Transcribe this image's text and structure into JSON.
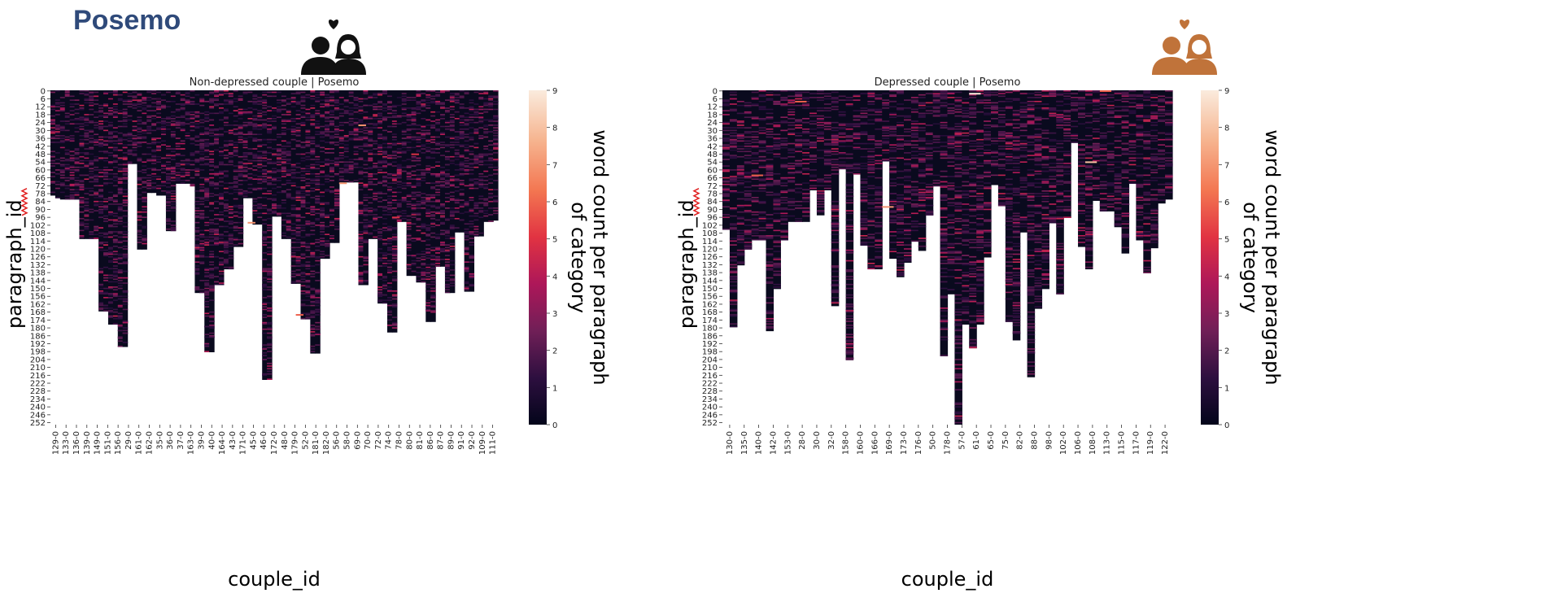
{
  "page": {
    "title": "Posemo"
  },
  "icons": [
    {
      "name": "couple-icon",
      "color": "#111111"
    },
    {
      "name": "couple-icon",
      "color": "#c0733a"
    }
  ],
  "chart_data": [
    {
      "type": "heatmap",
      "title": "Non-depressed couple | Posemo",
      "xlabel": "couple_id",
      "ylabel": "paragraph_id",
      "colorbar_label": "word count per paragraph of category",
      "colorbar_ticks": [
        0,
        1,
        2,
        3,
        4,
        5,
        6,
        7,
        8,
        9
      ],
      "vmin": 0,
      "vmax": 9,
      "colormap": [
        "#03051a",
        "#2d0f3f",
        "#701f57",
        "#ad1759",
        "#e13342",
        "#f37651",
        "#f6b48f",
        "#faebdd"
      ],
      "y_ticks": [
        "0",
        "6",
        "12",
        "18",
        "24",
        "30",
        "36",
        "42",
        "48",
        "54",
        "60",
        "66",
        "72",
        "78",
        "84",
        "90",
        "96",
        "102",
        "108",
        "114",
        "120",
        "126",
        "132",
        "138",
        "144",
        "150",
        "156",
        "162",
        "168",
        "174",
        "180",
        "186",
        "192",
        "198",
        "204",
        "210",
        "216",
        "222",
        "228",
        "234",
        "240",
        "246",
        "252"
      ],
      "x_ticks": [
        "129-0",
        "133-0",
        "136-0",
        "139-0",
        "149-0",
        "151-0",
        "156-0",
        "29-0",
        "161-0",
        "162-0",
        "35-0",
        "36-0",
        "37-0",
        "163-0",
        "39-0",
        "40-0",
        "164-0",
        "43-0",
        "171-0",
        "45-0",
        "46-0",
        "172-0",
        "48-0",
        "179-0",
        "52-0",
        "181-0",
        "182-0",
        "56-0",
        "58-0",
        "69-0",
        "70-0",
        "72-0",
        "74-0",
        "78-0",
        "80-0",
        "81-0",
        "86-0",
        "87-0",
        "89-0",
        "91-0",
        "92-0",
        "109-0",
        "111-0"
      ],
      "column_lengths": [
        80,
        82,
        83,
        83,
        83,
        83,
        113,
        113,
        113,
        113,
        168,
        168,
        178,
        178,
        195,
        195,
        56,
        56,
        121,
        121,
        78,
        78,
        80,
        80,
        107,
        107,
        71,
        71,
        71,
        73,
        154,
        154,
        199,
        199,
        148,
        148,
        136,
        136,
        119,
        119,
        82,
        82,
        102,
        102,
        220,
        220,
        96,
        96,
        113,
        113,
        147,
        147,
        174,
        174,
        200,
        200,
        128,
        128,
        116,
        116,
        70,
        70,
        70,
        70,
        148,
        148,
        113,
        113,
        162,
        162,
        184,
        184,
        100,
        100,
        141,
        141,
        146,
        146,
        176,
        176,
        134,
        134,
        154,
        154,
        108,
        108,
        153,
        153,
        111,
        111,
        100,
        100,
        99
      ],
      "highlights": [
        {
          "x": "45-0",
          "y": 100,
          "value": 7
        },
        {
          "x": "70-0",
          "y": 26,
          "value": 7
        },
        {
          "x": "52-0",
          "y": 170,
          "value": 6
        },
        {
          "x": "58-0",
          "y": 70,
          "value": 7
        },
        {
          "x": "81-0",
          "y": 48,
          "value": 5
        },
        {
          "x": "78-0",
          "y": 96,
          "value": 5
        }
      ]
    },
    {
      "type": "heatmap",
      "title": "Depressed couple | Posemo",
      "xlabel": "couple_id",
      "ylabel": "paragraph_id",
      "colorbar_label": "word count per paragraph of category",
      "colorbar_ticks": [
        0,
        1,
        2,
        3,
        4,
        5,
        6,
        7,
        8,
        9
      ],
      "vmin": 0,
      "vmax": 9,
      "colormap": [
        "#03051a",
        "#2d0f3f",
        "#701f57",
        "#ad1759",
        "#e13342",
        "#f37651",
        "#f6b48f",
        "#faebdd"
      ],
      "y_ticks": [
        "0",
        "6",
        "12",
        "18",
        "24",
        "30",
        "36",
        "42",
        "48",
        "54",
        "60",
        "66",
        "72",
        "78",
        "84",
        "90",
        "96",
        "102",
        "108",
        "114",
        "120",
        "126",
        "132",
        "138",
        "144",
        "150",
        "156",
        "162",
        "168",
        "174",
        "180",
        "186",
        "192",
        "198",
        "204",
        "210",
        "216",
        "222",
        "228",
        "234",
        "240",
        "246",
        "252"
      ],
      "x_ticks": [
        "130-0",
        "135-0",
        "140-0",
        "142-0",
        "153-0",
        "28-0",
        "30-0",
        "32-0",
        "158-0",
        "160-0",
        "166-0",
        "169-0",
        "173-0",
        "176-0",
        "50-0",
        "178-0",
        "57-0",
        "61-0",
        "65-0",
        "75-0",
        "82-0",
        "88-0",
        "98-0",
        "102-0",
        "106-0",
        "108-0",
        "113-0",
        "115-0",
        "117-0",
        "119-0",
        "122-0"
      ],
      "column_lengths": [
        106,
        180,
        133,
        121,
        114,
        114,
        183,
        151,
        114,
        100,
        100,
        100,
        76,
        95,
        76,
        164,
        60,
        205,
        64,
        118,
        136,
        136,
        54,
        128,
        142,
        131,
        115,
        122,
        95,
        73,
        202,
        155,
        254,
        178,
        196,
        178,
        127,
        72,
        88,
        176,
        190,
        108,
        218,
        166,
        151,
        101,
        155,
        97,
        40,
        119,
        136,
        84,
        92,
        92,
        104,
        124,
        71,
        114,
        139,
        120,
        86,
        83
      ],
      "highlights": [
        {
          "x": "61-0",
          "y": 2,
          "value": 9
        },
        {
          "x": "140-0",
          "y": 64,
          "value": 6
        },
        {
          "x": "28-0",
          "y": 8,
          "value": 6
        },
        {
          "x": "108-0",
          "y": 54,
          "value": 8
        },
        {
          "x": "113-0",
          "y": 0,
          "value": 6
        },
        {
          "x": "169-0",
          "y": 88,
          "value": 7
        }
      ]
    }
  ]
}
